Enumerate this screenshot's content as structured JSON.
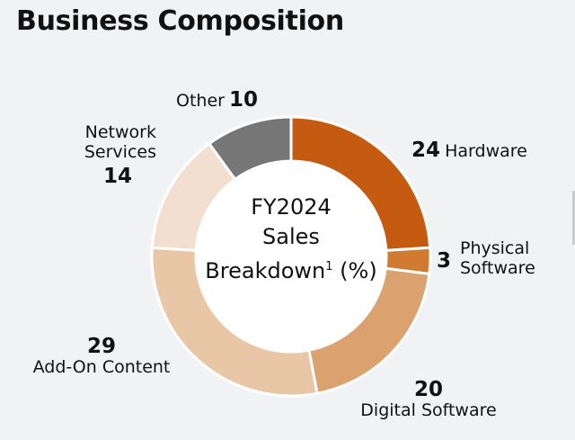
{
  "title": "Business Composition",
  "center": {
    "line1": "FY2024",
    "line2": "Sales",
    "line3": "Breakdown",
    "footnote": "1",
    "line3_suffix": " (%)"
  },
  "chart_data": {
    "type": "pie",
    "donut": true,
    "categories": [
      "Hardware",
      "Physical Software",
      "Digital Software",
      "Add-On Content",
      "Network Services",
      "Other"
    ],
    "values": [
      24,
      3,
      20,
      29,
      14,
      10
    ],
    "colors": [
      "#c55a11",
      "#d07a32",
      "#dba16e",
      "#e9c7a6",
      "#f3dfcf",
      "#767676"
    ]
  },
  "labels": {
    "hardware": {
      "value": "24",
      "name": "Hardware"
    },
    "physical_software": {
      "value": "3",
      "name_line1": "Physical",
      "name_line2": "Software"
    },
    "digital_software": {
      "value": "20",
      "name": "Digital Software"
    },
    "add_on_content": {
      "value": "29",
      "name": "Add-On Content"
    },
    "network_services": {
      "value": "14",
      "name_line1": "Network",
      "name_line2": "Services"
    },
    "other": {
      "value": "10",
      "name": "Other"
    }
  }
}
